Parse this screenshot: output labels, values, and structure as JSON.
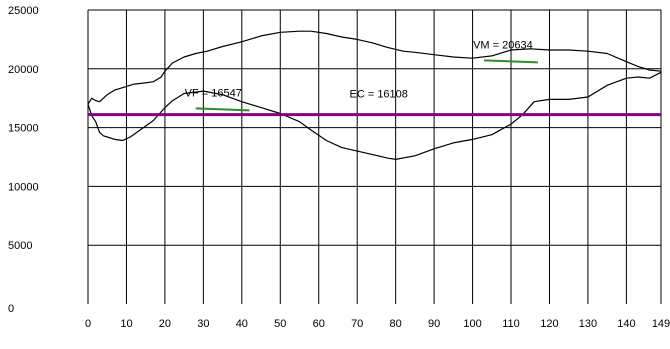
{
  "chart_data": {
    "type": "line",
    "title": "",
    "xlabel": "",
    "ylabel": "",
    "xlim": [
      0,
      149
    ],
    "ylim": [
      0,
      25000
    ],
    "grid": true,
    "x_ticks": [
      "0",
      "10",
      "20",
      "30",
      "40",
      "50",
      "60",
      "70",
      "80",
      "90",
      "100",
      "110",
      "120",
      "130",
      "140",
      "149"
    ],
    "y_ticks": [
      "0",
      "5000",
      "10000",
      "15000",
      "20000",
      "25000"
    ],
    "colors": {
      "curves": "#000000",
      "ec_line": "#800080",
      "mean_markers": "#2e8b2e",
      "grid": "#000000"
    },
    "series": [
      {
        "x": [
          0,
          1,
          2,
          3,
          4,
          5,
          6,
          7,
          8,
          10,
          12,
          15,
          17,
          19,
          20,
          22,
          25,
          28,
          31,
          35,
          40,
          45,
          50,
          55,
          58,
          62,
          66,
          70,
          74,
          78,
          82,
          85,
          90,
          95,
          100,
          105,
          110,
          115,
          120,
          125,
          130,
          135,
          140,
          143,
          146,
          149
        ],
        "values": [
          17000,
          17500,
          17300,
          17200,
          17500,
          17800,
          18000,
          18200,
          18300,
          18500,
          18700,
          18800,
          18900,
          19300,
          19800,
          20500,
          21000,
          21300,
          21500,
          21900,
          22300,
          22800,
          23100,
          23200,
          23200,
          23000,
          22700,
          22500,
          22200,
          21800,
          21500,
          21400,
          21200,
          21000,
          20900,
          21100,
          21600,
          21700,
          21600,
          21600,
          21500,
          21300,
          20600,
          20200,
          19900,
          19800
        ]
      },
      {
        "x": [
          0,
          1,
          2,
          3,
          4,
          5,
          7,
          9,
          11,
          14,
          17,
          20,
          22,
          25,
          30,
          35,
          40,
          45,
          50,
          55,
          58,
          62,
          66,
          70,
          74,
          78,
          80,
          85,
          90,
          95,
          100,
          105,
          110,
          113,
          116,
          120,
          125,
          130,
          135,
          140,
          143,
          146,
          149
        ],
        "values": [
          17000,
          16000,
          15500,
          14600,
          14300,
          14200,
          14000,
          13900,
          14200,
          14900,
          15600,
          16700,
          17300,
          17900,
          18100,
          17800,
          17200,
          16700,
          16200,
          15500,
          14800,
          13900,
          13300,
          13000,
          12700,
          12400,
          12300,
          12600,
          13200,
          13700,
          14000,
          14400,
          15300,
          16100,
          17200,
          17400,
          17400,
          17600,
          18600,
          19200,
          19300,
          19200,
          19700
        ]
      }
    ],
    "reference_lines": [
      {
        "label": "EC = 16108",
        "value": 16108
      }
    ],
    "mean_markers": [
      {
        "label": "VF = 16547",
        "value": 16547,
        "x_start": 28,
        "x_end": 42
      },
      {
        "label": "VM = 20634",
        "value": 20634,
        "x_start": 103,
        "x_end": 117
      }
    ]
  }
}
